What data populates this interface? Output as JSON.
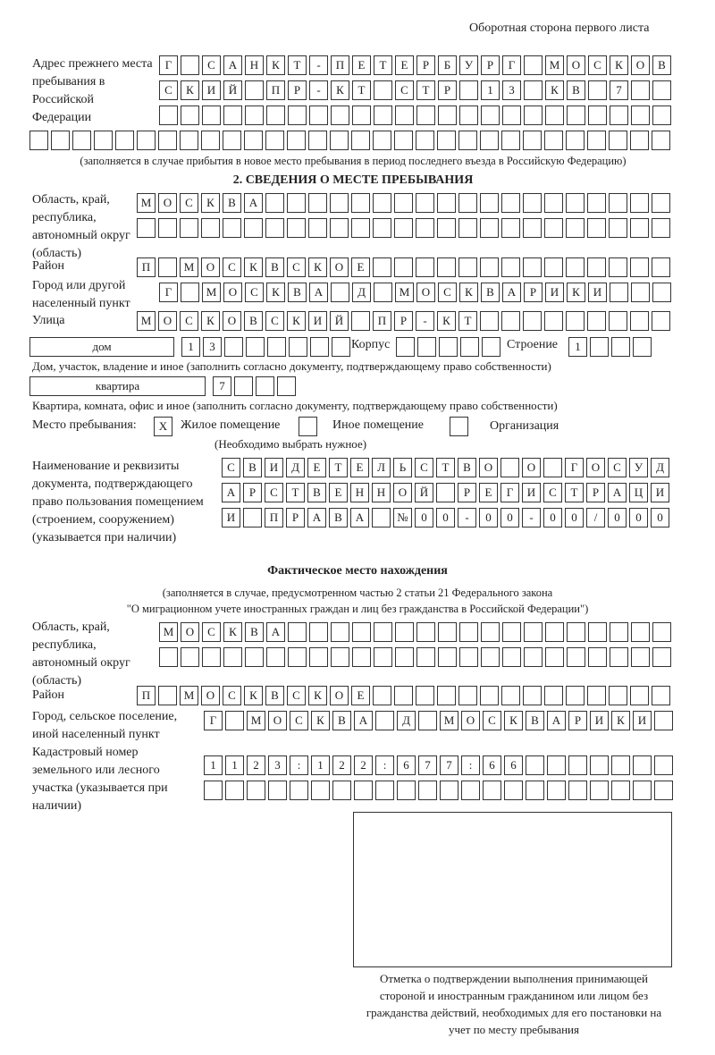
{
  "header": {
    "page_side": "Оборотная сторона первого листа"
  },
  "prev_address": {
    "label": "Адрес прежнего места пребывания в Российской Федерации",
    "rows": [
      [
        "Г",
        "",
        "С",
        "А",
        "Н",
        "К",
        "Т",
        "-",
        "П",
        "Е",
        "Т",
        "Е",
        "Р",
        "Б",
        "У",
        "Р",
        "Г",
        "",
        "М",
        "О",
        "С",
        "К",
        "О",
        "В"
      ],
      [
        "С",
        "К",
        "И",
        "Й",
        "",
        "П",
        "Р",
        "-",
        "К",
        "Т",
        "",
        "С",
        "Т",
        "Р",
        "",
        "1",
        "3",
        "",
        "К",
        "В",
        "",
        "7",
        "",
        ""
      ],
      [
        "",
        "",
        "",
        "",
        "",
        "",
        "",
        "",
        "",
        "",
        "",
        "",
        "",
        "",
        "",
        "",
        "",
        "",
        "",
        "",
        "",
        "",
        "",
        ""
      ],
      [
        "",
        "",
        "",
        "",
        "",
        "",
        "",
        "",
        "",
        "",
        "",
        "",
        "",
        "",
        "",
        "",
        "",
        "",
        "",
        "",
        "",
        "",
        "",
        "",
        "",
        "",
        "",
        "",
        "",
        ""
      ]
    ],
    "note": "(заполняется в случае прибытия в новое место пребывания в период последнего въезда в Российскую Федерацию)"
  },
  "section2": {
    "title": "2. СВЕДЕНИЯ О МЕСТЕ ПРЕБЫВАНИЯ",
    "region_label": "Область, край, республика, автономный округ (область)",
    "region_rows": [
      [
        "М",
        "О",
        "С",
        "К",
        "В",
        "А",
        "",
        "",
        "",
        "",
        "",
        "",
        "",
        "",
        "",
        "",
        "",
        "",
        "",
        "",
        "",
        "",
        "",
        "",
        ""
      ],
      [
        "",
        "",
        "",
        "",
        "",
        "",
        "",
        "",
        "",
        "",
        "",
        "",
        "",
        "",
        "",
        "",
        "",
        "",
        "",
        "",
        "",
        "",
        "",
        "",
        ""
      ]
    ],
    "district_label": "Район",
    "district": [
      "П",
      "",
      "М",
      "О",
      "С",
      "К",
      "В",
      "С",
      "К",
      "О",
      "Е",
      "",
      "",
      "",
      "",
      "",
      "",
      "",
      "",
      "",
      "",
      "",
      "",
      "",
      ""
    ],
    "city_label": "Город или другой населенный пункт",
    "city": [
      "Г",
      "",
      "М",
      "О",
      "С",
      "К",
      "В",
      "А",
      "",
      "Д",
      "",
      "М",
      "О",
      "С",
      "К",
      "В",
      "А",
      "Р",
      "И",
      "К",
      "И",
      "",
      "",
      ""
    ],
    "street_label": "Улица",
    "street": [
      "М",
      "О",
      "С",
      "К",
      "О",
      "В",
      "С",
      "К",
      "И",
      "Й",
      "",
      "П",
      "Р",
      "-",
      "К",
      "Т",
      "",
      "",
      "",
      "",
      "",
      "",
      "",
      "",
      ""
    ],
    "house_type": "дом",
    "house": [
      "1",
      "3",
      "",
      "",
      "",
      "",
      "",
      ""
    ],
    "korpus_label": "Корпус",
    "korpus": [
      "",
      "",
      "",
      "",
      ""
    ],
    "building_label": "Строение",
    "building": [
      "1",
      "",
      "",
      ""
    ],
    "house_note": "Дом, участок, владение и иное (заполнить согласно документу, подтверждающему право собственности)",
    "flat_type": "квартира",
    "flat": [
      "7",
      "",
      "",
      ""
    ],
    "flat_note": "Квартира, комната, офис и иное (заполнить согласно документу, подтверждающему право собственности)",
    "stay_label": "Место пребывания:",
    "options": [
      {
        "label": "Жилое помещение",
        "mark": "X"
      },
      {
        "label": "Иное помещение",
        "mark": ""
      },
      {
        "label": "Организация",
        "mark": ""
      }
    ],
    "options_note": "(Необходимо выбрать нужное)",
    "doc_label": "Наименование и реквизиты документа, подтверждающего право пользования помещением (строением, сооружением) (указывается при наличии)",
    "doc_rows": [
      [
        "С",
        "В",
        "И",
        "Д",
        "Е",
        "Т",
        "Е",
        "Л",
        "Ь",
        "С",
        "Т",
        "В",
        "О",
        "",
        "О",
        "",
        "Г",
        "О",
        "С",
        "У",
        "Д"
      ],
      [
        "А",
        "Р",
        "С",
        "Т",
        "В",
        "Е",
        "Н",
        "Н",
        "О",
        "Й",
        "",
        "Р",
        "Е",
        "Г",
        "И",
        "С",
        "Т",
        "Р",
        "А",
        "Ц",
        "И"
      ],
      [
        "И",
        "",
        "П",
        "Р",
        "А",
        "В",
        "А",
        "",
        "№",
        "0",
        "0",
        "-",
        "0",
        "0",
        "-",
        "0",
        "0",
        "/",
        "0",
        "0",
        "0"
      ]
    ]
  },
  "actual": {
    "title": "Фактическое место нахождения",
    "note1": "(заполняется в случае, предусмотренном частью 2 статьи 21 Федерального закона",
    "note2": "\"О миграционном учете иностранных граждан и лиц без гражданства в Российской Федерации\")",
    "region_label": "Область, край, республика, автономный округ (область)",
    "region_rows": [
      [
        "М",
        "О",
        "С",
        "К",
        "В",
        "А",
        "",
        "",
        "",
        "",
        "",
        "",
        "",
        "",
        "",
        "",
        "",
        "",
        "",
        "",
        "",
        "",
        "",
        ""
      ],
      [
        "",
        "",
        "",
        "",
        "",
        "",
        "",
        "",
        "",
        "",
        "",
        "",
        "",
        "",
        "",
        "",
        "",
        "",
        "",
        "",
        "",
        "",
        "",
        ""
      ]
    ],
    "district_label": "Район",
    "district": [
      "П",
      "",
      "М",
      "О",
      "С",
      "К",
      "В",
      "С",
      "К",
      "О",
      "Е",
      "",
      "",
      "",
      "",
      "",
      "",
      "",
      "",
      "",
      "",
      "",
      "",
      "",
      ""
    ],
    "city_label": "Город, сельское поселение, иной населенный пункт",
    "city": [
      "Г",
      "",
      "М",
      "О",
      "С",
      "К",
      "В",
      "А",
      "",
      "Д",
      "",
      "М",
      "О",
      "С",
      "К",
      "В",
      "А",
      "Р",
      "И",
      "К",
      "И",
      ""
    ],
    "cadastral_label": "Кадастровый номер земельного или лесного участка (указывается при наличии)",
    "cadastral_rows": [
      [
        "1",
        "1",
        "2",
        "3",
        ":",
        "1",
        "2",
        "2",
        ":",
        "6",
        "7",
        "7",
        ":",
        "6",
        "6",
        "",
        "",
        "",
        "",
        "",
        "",
        ""
      ],
      [
        "",
        "",
        "",
        "",
        "",
        "",
        "",
        "",
        "",
        "",
        "",
        "",
        "",
        "",
        "",
        "",
        "",
        "",
        "",
        "",
        "",
        ""
      ]
    ],
    "stamp_caption": "Отметка о подтверждении выполнения принимающей стороной и иностранным гражданином или лицом без гражданства действий, необходимых для его постановки на учет по месту пребывания"
  }
}
